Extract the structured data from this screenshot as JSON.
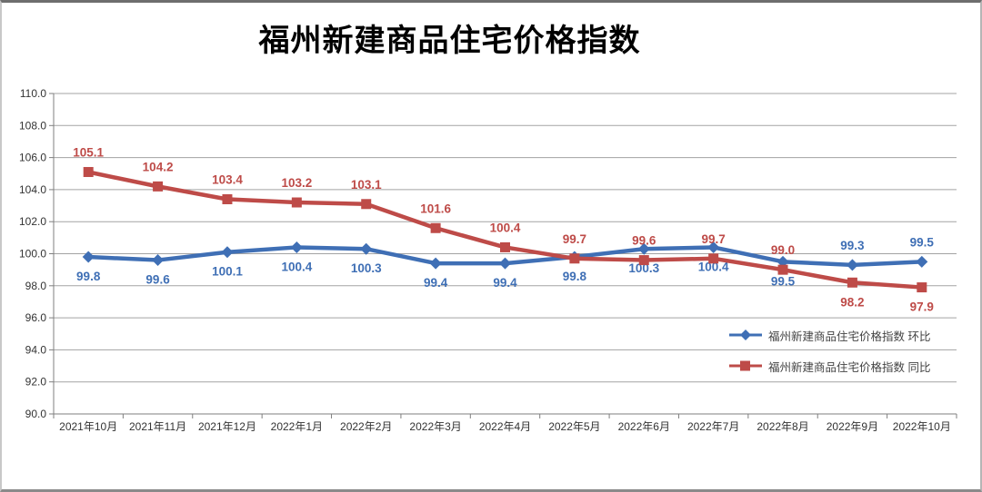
{
  "chart_data": {
    "type": "line",
    "title": "福州新建商品住宅价格指数",
    "categories": [
      "2021年10月",
      "2021年11月",
      "2021年12月",
      "2022年1月",
      "2022年2月",
      "2022年3月",
      "2022年4月",
      "2022年5月",
      "2022年6月",
      "2022年7月",
      "2022年8月",
      "2022年9月",
      "2022年10月"
    ],
    "series": [
      {
        "name": "福州新建商品住宅价格指数 环比",
        "values": [
          99.8,
          99.6,
          100.1,
          100.4,
          100.3,
          99.4,
          99.4,
          99.8,
          100.3,
          100.4,
          99.5,
          99.3,
          99.5
        ],
        "color": "#3f6fb5",
        "marker": "diamond",
        "label_positions": [
          "below",
          "below",
          "below",
          "below",
          "below",
          "below",
          "below",
          "below",
          "below",
          "below",
          "below",
          "above",
          "above"
        ]
      },
      {
        "name": "福州新建商品住宅价格指数 同比",
        "values": [
          105.1,
          104.2,
          103.4,
          103.2,
          103.1,
          101.6,
          100.4,
          99.7,
          99.6,
          99.7,
          99.0,
          98.2,
          97.9
        ],
        "color": "#be4b48",
        "marker": "square",
        "label_positions": [
          "above",
          "above",
          "above",
          "above",
          "above",
          "above",
          "above",
          "above",
          "above",
          "above",
          "above",
          "below",
          "below"
        ]
      }
    ],
    "ylim": [
      90,
      110
    ],
    "ytick_step": 2,
    "ytick_format": "one_decimal",
    "grid": true,
    "gridline_color": "#a3a3a3",
    "axis_color": "#7f7f7f",
    "tick_label_color": "#333333",
    "data_label_bold": true,
    "legend_position": "inside-right"
  }
}
